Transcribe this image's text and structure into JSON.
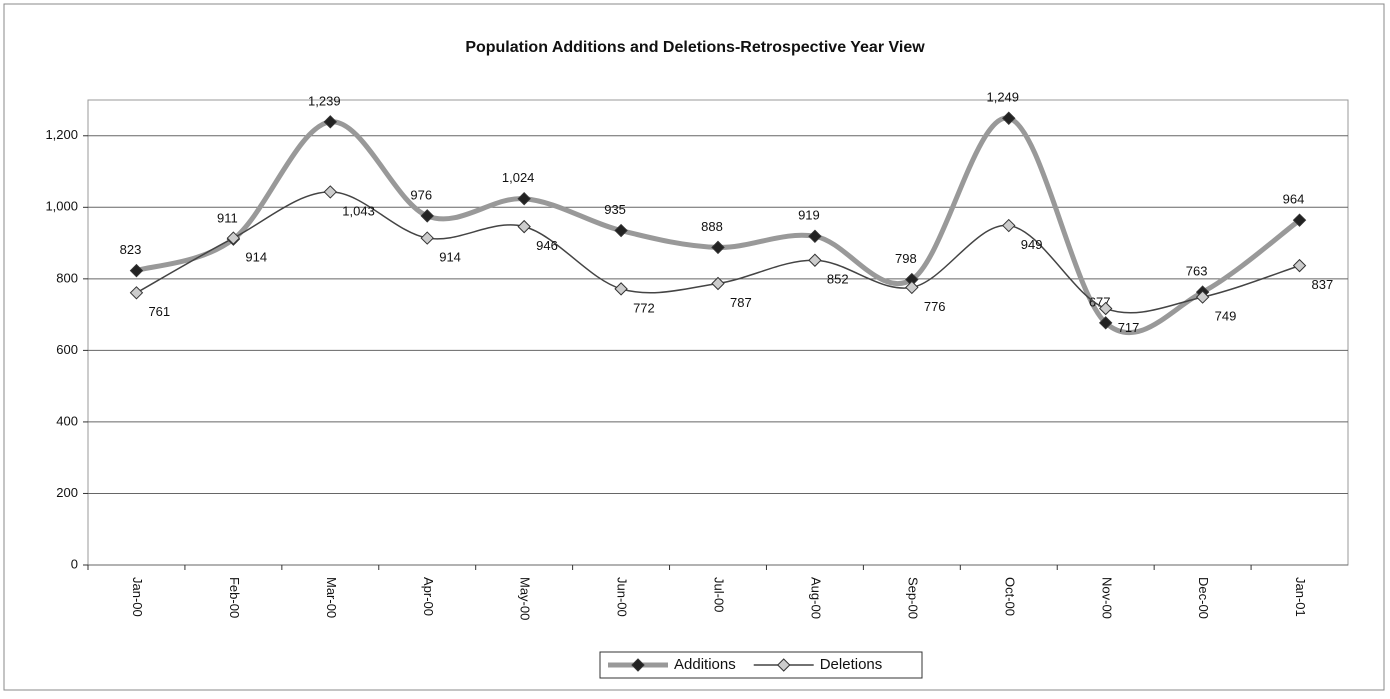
{
  "chart_data": {
    "type": "line",
    "title": "Population Additions and Deletions-Retrospective Year View",
    "categories": [
      "Jan-00",
      "Feb-00",
      "Mar-00",
      "Apr-00",
      "May-00",
      "Jun-00",
      "Jul-00",
      "Aug-00",
      "Sep-00",
      "Oct-00",
      "Nov-00",
      "Dec-00",
      "Jan-01"
    ],
    "series": [
      {
        "name": "Additions",
        "color": "#999999",
        "marker_color": "#222222",
        "values": [
          823,
          911,
          1239,
          976,
          1024,
          935,
          888,
          919,
          798,
          1249,
          677,
          763,
          964
        ],
        "value_labels": [
          "823",
          "911",
          "1,239",
          "976",
          "1,024",
          "935",
          "888",
          "919",
          "798",
          "1,249",
          "677",
          "763",
          "964"
        ]
      },
      {
        "name": "Deletions",
        "color": "#444444",
        "marker_color": "#cccccc",
        "values": [
          761,
          914,
          1043,
          914,
          946,
          772,
          787,
          852,
          776,
          949,
          717,
          749,
          837
        ],
        "value_labels": [
          "761",
          "914",
          "1,043",
          "914",
          "946",
          "772",
          "787",
          "852",
          "776",
          "949",
          "717",
          "749",
          "837"
        ]
      }
    ],
    "ylim": [
      0,
      1300
    ],
    "yticks": [
      0,
      200,
      400,
      600,
      800,
      {
        "value": 1000,
        "label": "1,000"
      },
      {
        "value": 1200,
        "label": "1,200"
      }
    ],
    "grid": true,
    "smooth": true,
    "legend": "bottom"
  }
}
